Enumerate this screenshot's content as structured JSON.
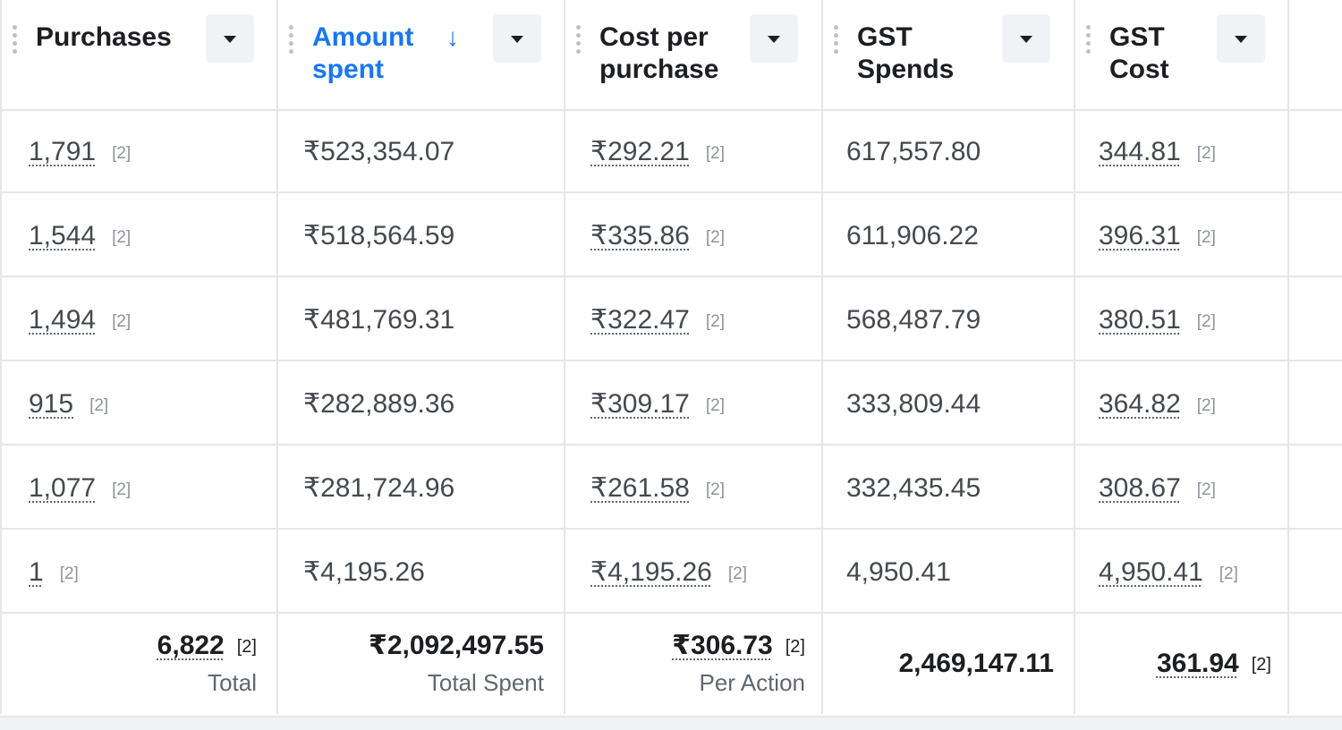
{
  "columns": [
    {
      "title": "Purchases",
      "sorted": false
    },
    {
      "title": "Amount\nspent",
      "sorted": true,
      "sort_icon": "arrow-down-icon"
    },
    {
      "title": "Cost per\npurchase",
      "sorted": false
    },
    {
      "title": "GST\nSpends",
      "sorted": false
    },
    {
      "title": "GST\nCost",
      "sorted": false
    }
  ],
  "rows": [
    {
      "purchases": "1,791",
      "amount": "₹523,354.07",
      "cpp": "₹292.21",
      "gst_spends": "617,557.80",
      "gst_cost": "344.81"
    },
    {
      "purchases": "1,544",
      "amount": "₹518,564.59",
      "cpp": "₹335.86",
      "gst_spends": "611,906.22",
      "gst_cost": "396.31"
    },
    {
      "purchases": "1,494",
      "amount": "₹481,769.31",
      "cpp": "₹322.47",
      "gst_spends": "568,487.79",
      "gst_cost": "380.51"
    },
    {
      "purchases": "915",
      "amount": "₹282,889.36",
      "cpp": "₹309.17",
      "gst_spends": "333,809.44",
      "gst_cost": "364.82"
    },
    {
      "purchases": "1,077",
      "amount": "₹281,724.96",
      "cpp": "₹261.58",
      "gst_spends": "332,435.45",
      "gst_cost": "308.67"
    },
    {
      "purchases": "1",
      "amount": "₹4,195.26",
      "cpp": "₹4,195.26",
      "gst_spends": "4,950.41",
      "gst_cost": "4,950.41"
    }
  ],
  "note_marker": "[2]",
  "footer": {
    "purchases": {
      "value": "6,822",
      "label": "Total"
    },
    "amount": {
      "value": "₹2,092,497.55",
      "label": "Total Spent"
    },
    "cpp": {
      "value": "₹306.73",
      "label": "Per Action"
    },
    "gst_spends": {
      "value": "2,469,147.11"
    },
    "gst_cost": {
      "value": "361.94"
    }
  }
}
